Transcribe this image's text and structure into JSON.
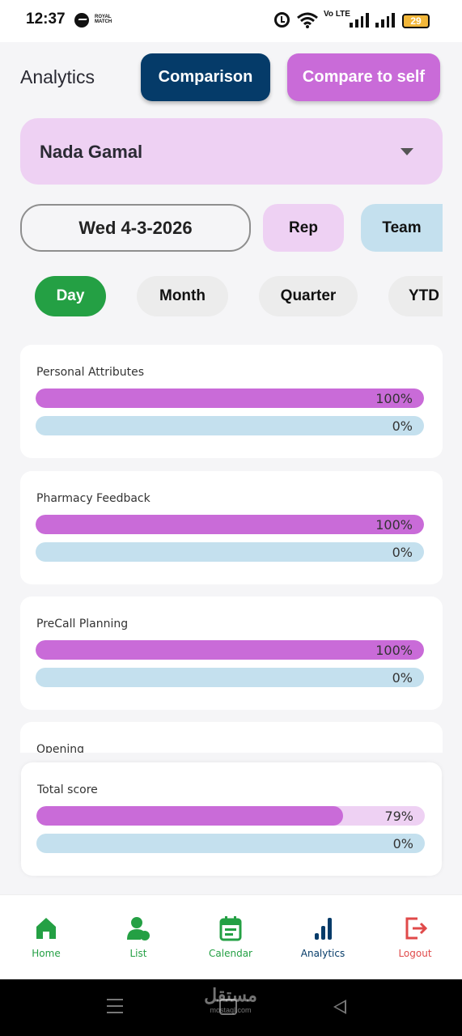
{
  "status_bar": {
    "time": "12:37",
    "app_badge": "ROYAL MATCH",
    "volte": "Vo LTE",
    "battery": "29"
  },
  "header": {
    "title": "Analytics",
    "comparison_label": "Comparison",
    "compare_self_label": "Compare to self"
  },
  "rep_selector": {
    "value": "Nada Gamal"
  },
  "filters": {
    "date": "Wed 4-3-2026",
    "rep_label": "Rep",
    "team_label": "Team"
  },
  "period_tabs": [
    {
      "label": "Day",
      "active": true
    },
    {
      "label": "Month",
      "active": false
    },
    {
      "label": "Quarter",
      "active": false
    },
    {
      "label": "YTD",
      "active": false
    }
  ],
  "scores": [
    {
      "title": "Personal Attributes",
      "rep_percent": 100,
      "rep_label": "100%",
      "team_percent": 0,
      "team_label": "0%"
    },
    {
      "title": "Pharmacy Feedback",
      "rep_percent": 100,
      "rep_label": "100%",
      "team_percent": 0,
      "team_label": "0%"
    },
    {
      "title": "PreCall Planning",
      "rep_percent": 100,
      "rep_label": "100%",
      "team_percent": 0,
      "team_label": "0%"
    },
    {
      "title": "Opening"
    }
  ],
  "total": {
    "title": "Total score",
    "rep_percent": 79,
    "rep_label": "79%",
    "team_percent": 0,
    "team_label": "0%"
  },
  "bottom_nav": [
    {
      "label": "Home",
      "icon": "home-icon",
      "color": "#24a044"
    },
    {
      "label": "List",
      "icon": "person-list-icon",
      "color": "#24a044"
    },
    {
      "label": "Calendar",
      "icon": "calendar-icon",
      "color": "#24a044"
    },
    {
      "label": "Analytics",
      "icon": "bar-chart-icon",
      "color": "#053b69"
    },
    {
      "label": "Logout",
      "icon": "logout-icon",
      "color": "#e04a4a"
    }
  ],
  "watermark": {
    "text": "مستقل",
    "sub": "mostaql.com"
  },
  "colors": {
    "rep_bar": "#c96bd8",
    "team_bar": "#c4e0ee",
    "active_tab": "#24a044",
    "comparison_button": "#053b69"
  }
}
